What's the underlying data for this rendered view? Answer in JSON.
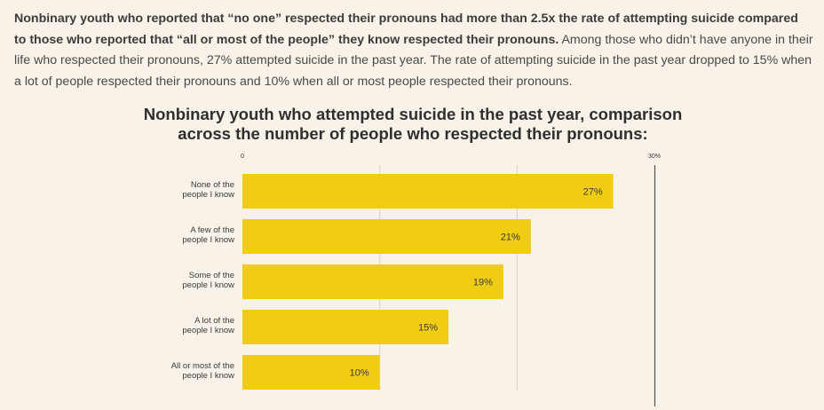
{
  "intro": {
    "bold": "Nonbinary youth who reported that “no one” respected their pronouns had more than 2.5x the rate of attempting suicide compared to those who reported that “all or most of the people” they know respected their pronouns.",
    "body": " Among those who didn’t have anyone in their life who respected their pronouns, 27% attempted suicide in the past year. The rate of attempting suicide in the past year dropped to 15% when a lot of people respected their pronouns and 10% when all or most people respected their pronouns."
  },
  "chart_data": {
    "type": "bar",
    "orientation": "horizontal",
    "title": "Nonbinary youth who attempted suicide in the past year, comparison across the number of people who respected their pronouns:",
    "categories": [
      [
        "None of the",
        "people I know"
      ],
      [
        "A few of the",
        "people I know"
      ],
      [
        "Some of the",
        "people I know"
      ],
      [
        "A lot of the",
        "people I know"
      ],
      [
        "All or most of the",
        "people I know"
      ]
    ],
    "values": [
      27,
      21,
      19,
      15,
      10
    ],
    "value_labels": [
      "27%",
      "21%",
      "19%",
      "15%",
      "10%"
    ],
    "xlim": [
      0,
      30
    ],
    "ticks": [
      {
        "value": 0,
        "label": "0"
      },
      {
        "value": 30,
        "label": "30%"
      }
    ],
    "gridlines": [
      10,
      20
    ],
    "xlabel": "",
    "ylabel": "",
    "grid": true,
    "colors": {
      "bar": "#f0cc12",
      "grid": "#d6d2ca",
      "axis_end": "#555555"
    }
  }
}
